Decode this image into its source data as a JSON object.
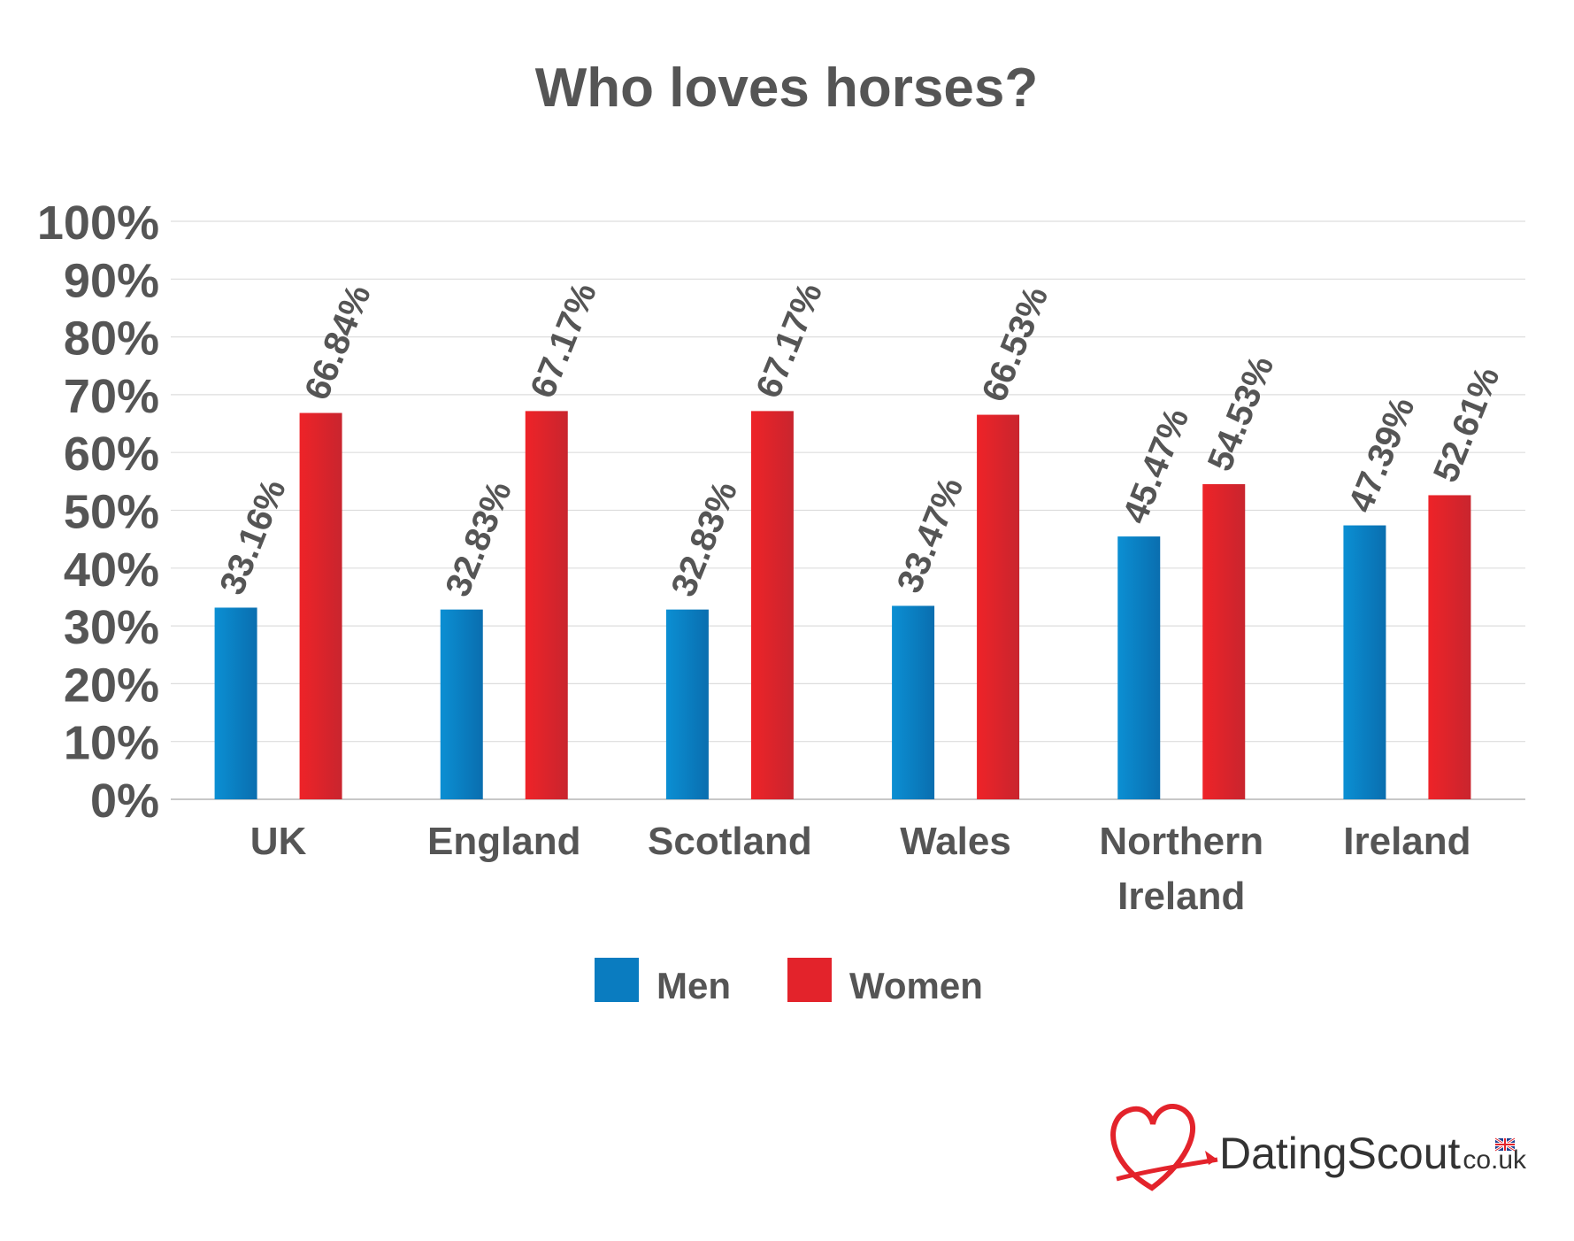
{
  "chart_data": {
    "type": "bar",
    "title": "Who loves horses?",
    "xlabel": "",
    "ylabel": "",
    "ylim": [
      0,
      100
    ],
    "yticks": [
      "0%",
      "10%",
      "20%",
      "30%",
      "40%",
      "50%",
      "60%",
      "70%",
      "80%",
      "90%",
      "100%"
    ],
    "categories": [
      [
        "UK"
      ],
      [
        "England"
      ],
      [
        "Scotland"
      ],
      [
        "Wales"
      ],
      [
        "Northern",
        "Ireland"
      ],
      [
        "Ireland"
      ]
    ],
    "series": [
      {
        "name": "Men",
        "color": "#0a7cc0",
        "values": [
          33.16,
          32.83,
          32.83,
          33.47,
          45.47,
          47.39
        ],
        "labels": [
          "33.16%",
          "32.83%",
          "32.83%",
          "33.47%",
          "45.47%",
          "47.39%"
        ]
      },
      {
        "name": "Women",
        "color": "#e3232b",
        "values": [
          66.84,
          67.17,
          67.17,
          66.53,
          54.53,
          52.61
        ],
        "labels": [
          "66.84%",
          "67.17%",
          "67.17%",
          "66.53%",
          "54.53%",
          "52.61%"
        ]
      }
    ],
    "grid": true,
    "legend_position": "bottom-center"
  },
  "branding": {
    "name_main": "DatingScout",
    "name_suffix": ".co.uk",
    "logo_icon": "heart-arrow-icon",
    "flag_icon": "uk-flag-icon"
  }
}
